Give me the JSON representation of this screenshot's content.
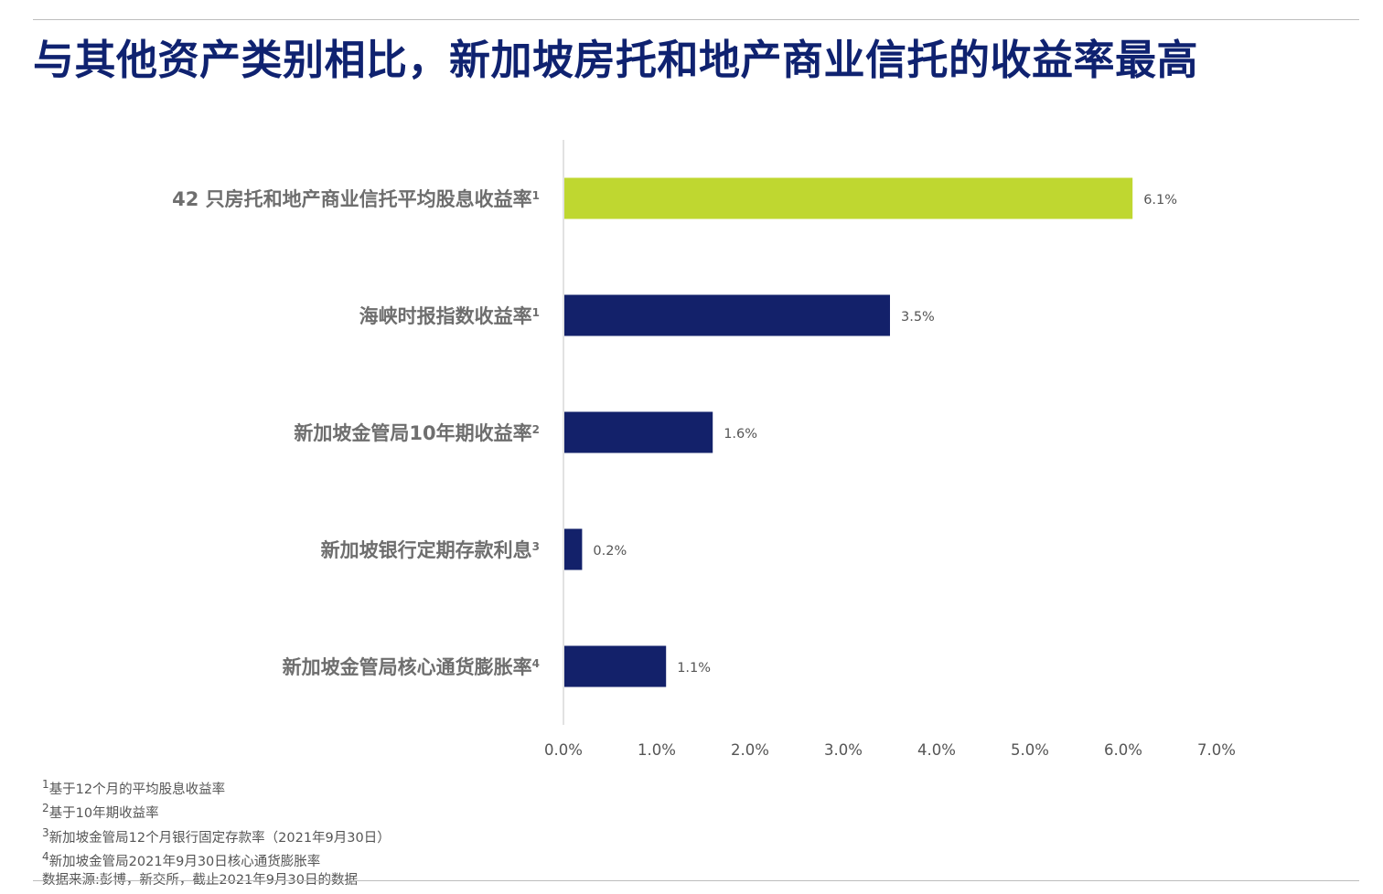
{
  "title": "与其他资产类别相比，新加坡房托和地产商业信托的收益率最高",
  "chart_data": {
    "type": "bar",
    "orientation": "horizontal",
    "categories": [
      {
        "label": "42 只房托和地产商业信托平均股息收益率",
        "note": "1"
      },
      {
        "label": "海峡时报指数收益率",
        "note": "1"
      },
      {
        "label": "新加坡金管局10年期收益率",
        "note": "2"
      },
      {
        "label": "新加坡银行定期存款利息",
        "note": "3"
      },
      {
        "label": "新加坡金管局核心通货膨胀率",
        "note": "4"
      }
    ],
    "values": [
      6.1,
      3.5,
      1.6,
      0.2,
      1.1
    ],
    "value_labels": [
      "6.1%",
      "3.5%",
      "1.6%",
      "0.2%",
      "1.1%"
    ],
    "bar_colors": [
      "#bfd730",
      "#13216a",
      "#13216a",
      "#13216a",
      "#13216a"
    ],
    "xlim": [
      0,
      7
    ],
    "x_ticks": [
      0,
      1,
      2,
      3,
      4,
      5,
      6,
      7
    ],
    "x_tick_labels": [
      "0.0%",
      "1.0%",
      "2.0%",
      "3.0%",
      "4.0%",
      "5.0%",
      "6.0%",
      "7.0%"
    ],
    "grid": false,
    "legend": "none"
  },
  "footnotes": [
    {
      "marker": "1",
      "text": "基于12个月的平均股息收益率"
    },
    {
      "marker": "2",
      "text": "基于10年期收益率"
    },
    {
      "marker": "3",
      "text": "新加坡金管局12个月银行固定存款率（2021年9月30日）"
    },
    {
      "marker": "4",
      "text": "新加坡金管局2021年9月30日核心通货膨胀率"
    }
  ],
  "source": "数据来源:彭博，新交所，截止2021年9月30日的数据",
  "colors": {
    "title": "#0f2270",
    "highlight_bar": "#bfd730",
    "bar": "#13216a",
    "axis_line": "#d9d9d9",
    "label_text": "#6e6e6e",
    "rule": "#bdbdbd"
  }
}
